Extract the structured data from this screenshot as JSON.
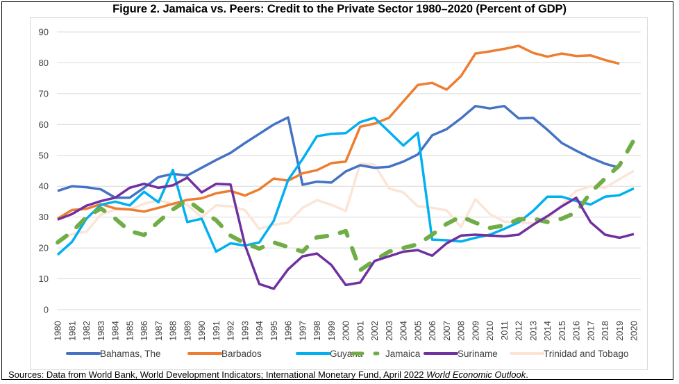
{
  "chart_data": {
    "type": "line",
    "title": "Figure 2. Jamaica vs. Peers: Credit to the Private Sector 1980–2020 (Percent of GDP)",
    "xlabel": "",
    "ylabel": "",
    "ylim": [
      0,
      90
    ],
    "yticks": [
      0,
      10,
      20,
      30,
      40,
      50,
      60,
      70,
      80,
      90
    ],
    "grid": true,
    "legend_position": "bottom",
    "x": [
      1980,
      1981,
      1982,
      1983,
      1984,
      1985,
      1986,
      1987,
      1988,
      1989,
      1990,
      1991,
      1992,
      1993,
      1994,
      1995,
      1996,
      1997,
      1998,
      1999,
      2000,
      2001,
      2002,
      2003,
      2004,
      2005,
      2006,
      2007,
      2008,
      2009,
      2010,
      2011,
      2012,
      2013,
      2014,
      2015,
      2016,
      2017,
      2018,
      2019,
      2020
    ],
    "series": [
      {
        "name": "Bahamas, The",
        "color": "#4472C4",
        "dashed": false,
        "values": [
          38.5,
          40,
          39.7,
          39,
          36.3,
          36.3,
          39.5,
          43,
          44,
          43.5,
          46,
          48.5,
          50.8,
          54,
          57,
          60,
          62.3,
          40.5,
          41.5,
          41.2,
          44.8,
          46.8,
          46,
          46.3,
          48,
          50.3,
          56.5,
          58.5,
          62,
          66,
          65.2,
          66,
          62,
          62.2,
          58.3,
          54,
          51.5,
          49.2,
          47.3,
          46,
          null
        ]
      },
      {
        "name": "Barbados",
        "color": "#ED7D31",
        "dashed": false,
        "values": [
          29.5,
          32.3,
          32.7,
          34.2,
          32.8,
          32.5,
          31.8,
          33,
          34.3,
          35.6,
          36.1,
          37.7,
          38.5,
          37,
          39,
          42.5,
          41.8,
          44.2,
          45.2,
          47.5,
          48,
          59.3,
          60.3,
          62.2,
          67.5,
          72.8,
          73.5,
          71.3,
          75.7,
          83,
          83.7,
          84.5,
          85.5,
          83.2,
          82,
          83,
          82.2,
          82.4,
          80.9,
          79.7,
          null
        ]
      },
      {
        "name": "Guyana",
        "color": "#00B0F0",
        "dashed": false,
        "values": [
          17.8,
          22,
          29.5,
          34,
          35,
          33.8,
          38.2,
          34.8,
          45.3,
          28.4,
          29.5,
          18.8,
          21.5,
          20.8,
          21.8,
          28.8,
          42,
          48.8,
          56.2,
          57,
          57.2,
          60.8,
          62.2,
          57.7,
          53.2,
          57.3,
          22.7,
          22.5,
          22.1,
          23.3,
          24.3,
          26.2,
          28.3,
          32,
          36.6,
          36.6,
          35.2,
          34.1,
          36.6,
          37.1,
          39.3
        ]
      },
      {
        "name": "Jamaica",
        "color": "#70AD47",
        "dashed": true,
        "values": [
          21.8,
          25.3,
          30,
          32.8,
          29.5,
          25.5,
          24.2,
          28.5,
          32.5,
          35.5,
          32,
          29,
          24,
          21.5,
          19.8,
          21.8,
          20.3,
          18.8,
          23.5,
          24,
          25.5,
          12.8,
          16,
          18.8,
          20,
          21.2,
          24.3,
          27.8,
          30.2,
          28.2,
          26.5,
          27.3,
          29.3,
          29.5,
          28.4,
          29.5,
          31.5,
          38,
          42.5,
          46.8,
          55
        ]
      },
      {
        "name": "Suriname",
        "color": "#7030A0",
        "dashed": false,
        "values": [
          29.2,
          31,
          33.7,
          35.2,
          36.3,
          39.5,
          40.8,
          39.5,
          40.3,
          42.8,
          38,
          40.8,
          40.6,
          21,
          8.3,
          6.8,
          13.1,
          17.3,
          18.2,
          14.5,
          8,
          8.8,
          15.8,
          17.3,
          18.8,
          19.3,
          17.5,
          21.5,
          24,
          24.3,
          24,
          23.8,
          24.3,
          27.5,
          30.3,
          33.5,
          36.3,
          28.3,
          24.3,
          23.3,
          24.5
        ]
      },
      {
        "name": "Trinidad and Tobago",
        "color": "#FBE5D6",
        "dashed": false,
        "values": [
          22.5,
          24.5,
          25.3,
          30.8,
          32.5,
          32.5,
          34.3,
          35.5,
          34.2,
          34,
          30,
          33.8,
          33.5,
          32.3,
          26.2,
          27.5,
          28.2,
          33,
          35.5,
          34,
          32,
          47.3,
          47,
          39.3,
          38,
          33.5,
          33,
          32.2,
          26.8,
          35.8,
          31,
          28.5,
          28.3,
          28,
          29.5,
          34,
          38.5,
          40,
          39.5,
          42.3,
          45
        ]
      }
    ]
  },
  "sources": {
    "prefix": "Sources: Data from World Bank, World Development Indicators; International Monetary Fund, April 2022 ",
    "italic": "World Economic Outlook",
    "suffix": "."
  }
}
